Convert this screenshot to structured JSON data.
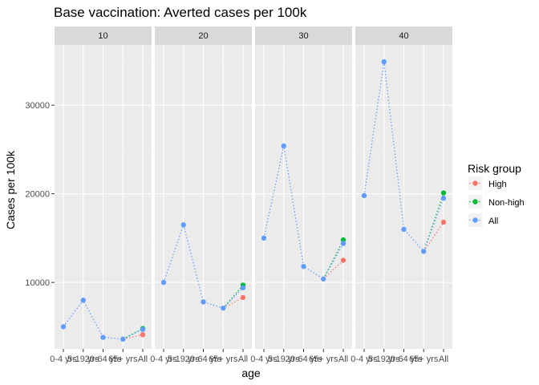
{
  "chart_data": {
    "type": "line",
    "title": "Base vaccination: Averted cases per 100k",
    "xlabel": "age",
    "ylabel": "Cases per 100k",
    "categories": [
      "0-4 yrs",
      "5-19 yrs",
      "20-64 yrs",
      "65+ yrs",
      "All"
    ],
    "ylim": [
      2500,
      36800
    ],
    "yticks": [
      10000,
      20000,
      30000
    ],
    "ytick_labels": [
      "10000",
      "20000",
      "30000"
    ],
    "grid": true,
    "legend": {
      "title": "Risk group",
      "position": "right"
    },
    "colors": {
      "High": "#F8766D",
      "Non-high": "#00BA38",
      "All": "#619CFF",
      "panel_bg": "#EBEBEB",
      "strip_bg": "#D9D9D9"
    },
    "panels": [
      {
        "label": "10",
        "series": [
          {
            "name": "High",
            "points": [
              {
                "x": "All",
                "y": 4100
              }
            ]
          },
          {
            "name": "Non-high",
            "points": [
              {
                "x": "All",
                "y": 4800
              }
            ]
          },
          {
            "name": "All",
            "points": [
              {
                "x": "0-4 yrs",
                "y": 5000
              },
              {
                "x": "5-19 yrs",
                "y": 8000
              },
              {
                "x": "20-64 yrs",
                "y": 3800
              },
              {
                "x": "65+ yrs",
                "y": 3600
              },
              {
                "x": "All",
                "y": 4700
              }
            ]
          }
        ]
      },
      {
        "label": "20",
        "series": [
          {
            "name": "High",
            "points": [
              {
                "x": "All",
                "y": 8300
              }
            ]
          },
          {
            "name": "Non-high",
            "points": [
              {
                "x": "All",
                "y": 9700
              }
            ]
          },
          {
            "name": "All",
            "points": [
              {
                "x": "0-4 yrs",
                "y": 10000
              },
              {
                "x": "5-19 yrs",
                "y": 16500
              },
              {
                "x": "20-64 yrs",
                "y": 7800
              },
              {
                "x": "65+ yrs",
                "y": 7100
              },
              {
                "x": "All",
                "y": 9400
              }
            ]
          }
        ]
      },
      {
        "label": "30",
        "series": [
          {
            "name": "High",
            "points": [
              {
                "x": "All",
                "y": 12500
              }
            ]
          },
          {
            "name": "Non-high",
            "points": [
              {
                "x": "All",
                "y": 14800
              }
            ]
          },
          {
            "name": "All",
            "points": [
              {
                "x": "0-4 yrs",
                "y": 15000
              },
              {
                "x": "5-19 yrs",
                "y": 25400
              },
              {
                "x": "20-64 yrs",
                "y": 11800
              },
              {
                "x": "65+ yrs",
                "y": 10400
              },
              {
                "x": "All",
                "y": 14400
              }
            ]
          }
        ]
      },
      {
        "label": "40",
        "series": [
          {
            "name": "High",
            "points": [
              {
                "x": "All",
                "y": 16800
              }
            ]
          },
          {
            "name": "Non-high",
            "points": [
              {
                "x": "All",
                "y": 20100
              }
            ]
          },
          {
            "name": "All",
            "points": [
              {
                "x": "0-4 yrs",
                "y": 19800
              },
              {
                "x": "5-19 yrs",
                "y": 34900
              },
              {
                "x": "20-64 yrs",
                "y": 16000
              },
              {
                "x": "65+ yrs",
                "y": 13500
              },
              {
                "x": "All",
                "y": 19500
              }
            ]
          }
        ]
      }
    ]
  }
}
